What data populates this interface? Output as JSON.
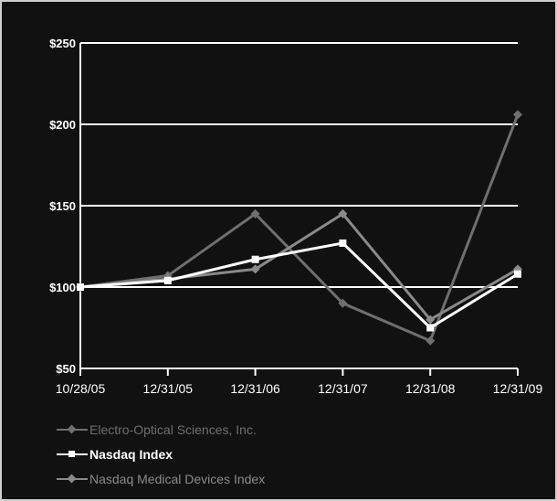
{
  "chart_data": {
    "type": "line",
    "title": "",
    "xlabel": "",
    "ylabel": "",
    "categories": [
      "10/28/05",
      "12/31/05",
      "12/31/06",
      "12/31/07",
      "12/31/08",
      "12/31/09"
    ],
    "y_ticks": [
      "$250",
      "$200",
      "$150",
      "$100",
      "$50"
    ],
    "y_tick_values": [
      250,
      200,
      150,
      100,
      50
    ],
    "ylim": [
      50,
      250
    ],
    "grid": "horizontal",
    "legend_position": "bottom-left",
    "series": [
      {
        "name": "Electro-Optical Sciences, Inc.",
        "color": "#6f6f6f",
        "marker": "diamond",
        "values": [
          100,
          107,
          145,
          90,
          67,
          206
        ]
      },
      {
        "name": "Nasdaq Index",
        "color": "#ffffff",
        "marker": "square",
        "values": [
          100,
          104,
          117,
          127,
          75,
          108
        ]
      },
      {
        "name": "Nasdaq Medical Devices Index",
        "color": "#8a8a8a",
        "marker": "diamond",
        "values": [
          100,
          105,
          111,
          145,
          80,
          111
        ]
      }
    ]
  }
}
